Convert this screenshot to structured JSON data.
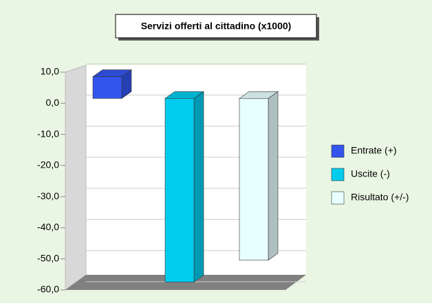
{
  "chart_data": {
    "type": "bar3d",
    "title": "Servizi offerti al cittadino (x1000)",
    "categories": [
      null
    ],
    "series": [
      {
        "name": "Entrate (+)",
        "color": "#3355ee",
        "values": [
          7
        ]
      },
      {
        "name": "Uscite (-)",
        "color": "#00ccee",
        "values": [
          -59
        ]
      },
      {
        "name": "Risultato (+/-)",
        "color": "#e8ffff",
        "values": [
          -52
        ]
      }
    ],
    "ylim": [
      -60,
      10
    ],
    "yticks": [
      {
        "value": 10,
        "label": "10,0"
      },
      {
        "value": 0,
        "label": "0,0"
      },
      {
        "value": -10,
        "label": "-10,0"
      },
      {
        "value": -20,
        "label": "-20,0"
      },
      {
        "value": -30,
        "label": "-30,0"
      },
      {
        "value": -40,
        "label": "-40,0"
      },
      {
        "value": -50,
        "label": "-50,0"
      },
      {
        "value": -60,
        "label": "-60,0"
      }
    ],
    "grid": true,
    "legend": "right"
  }
}
